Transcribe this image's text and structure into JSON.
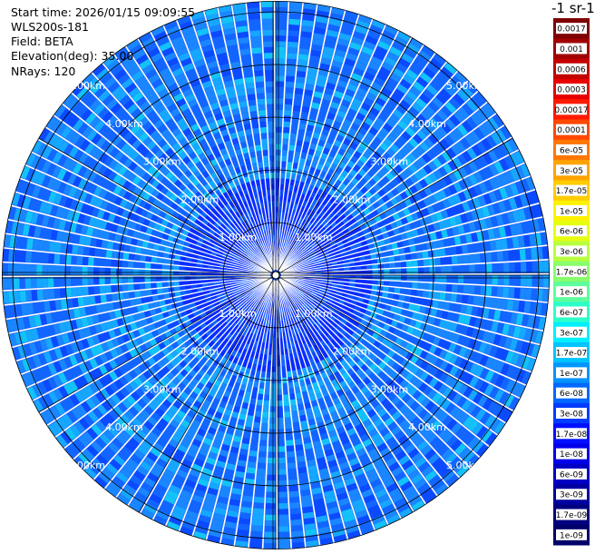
{
  "info": {
    "start_time": "Start time: 2026/01/15 09:09:55",
    "instrument": "WLS200s-181",
    "field": "Field: BETA",
    "elevation": "Elevation(deg): 35.00",
    "nrays": "NRays: 120"
  },
  "colorbar": {
    "title": "-1 sr-1",
    "labels": [
      "0.0017",
      "0.001",
      "0.0006",
      "0.0003",
      "0.00017",
      "0.0001",
      "6e-05",
      "3e-05",
      "1.7e-05",
      "1e-05",
      "6e-06",
      "3e-06",
      "1.7e-06",
      "1e-06",
      "6e-07",
      "3e-07",
      "1.7e-07",
      "1e-07",
      "6e-08",
      "3e-08",
      "1.7e-08",
      "1e-08",
      "6e-09",
      "3e-09",
      "1.7e-09",
      "1e-09"
    ],
    "colors": [
      "#7f0000",
      "#a00000",
      "#c40000",
      "#e80000",
      "#ff1a00",
      "#ff4800",
      "#ff7700",
      "#ffa300",
      "#ffcc00",
      "#fff200",
      "#e6ff10",
      "#b8ff3f",
      "#8aff6c",
      "#5cff9b",
      "#2effc9",
      "#00f0ff",
      "#00c4ff",
      "#0094ff",
      "#0068ff",
      "#003cff",
      "#0010ff",
      "#0000e8",
      "#0000c4",
      "#0000a0",
      "#000080",
      "#00006c"
    ]
  },
  "chart_data": {
    "type": "heatmap",
    "projection": "ppi-polar",
    "field": "BETA",
    "elevation_deg": 35.0,
    "n_rays": 120,
    "range_rings_km": [
      1,
      2,
      3,
      4,
      5
    ],
    "range_ring_labels": [
      "1.00km",
      "2.00km",
      "3.00km",
      "4.00km",
      "5.00km"
    ],
    "max_range_km": 5.2,
    "dominant_value_range": [
      "1e-08",
      "1e-07"
    ],
    "colorscale": "jet (log)",
    "grid": true
  }
}
